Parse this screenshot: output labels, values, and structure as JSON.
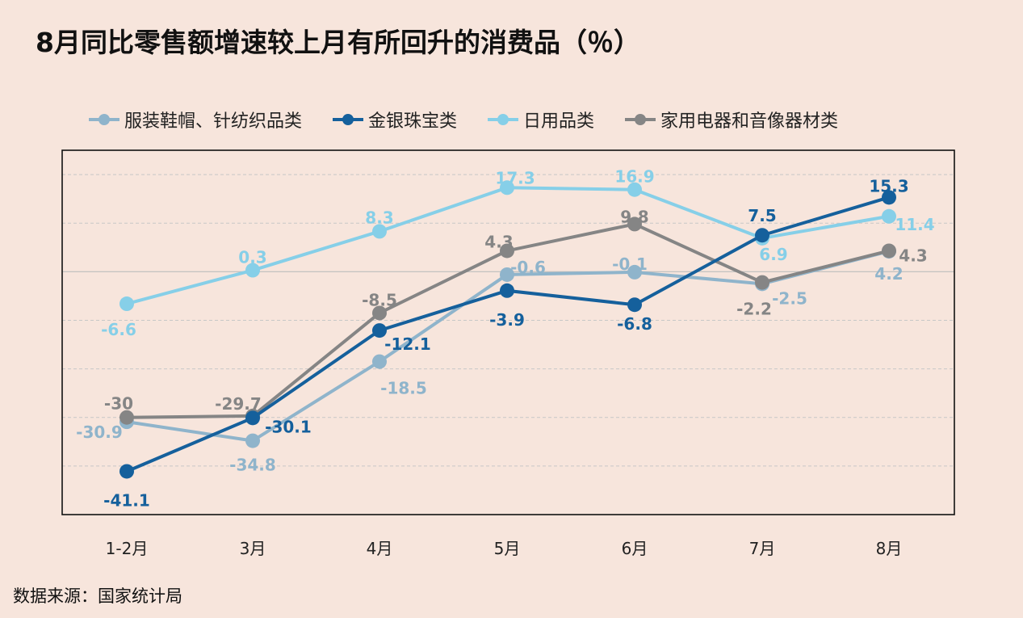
{
  "title": "8月同比零售额增速较上月有所回升的消费品（％）",
  "source": "数据来源：国家统计局",
  "chart_data": {
    "type": "line",
    "categories": [
      "1-2月",
      "3月",
      "4月",
      "5月",
      "6月",
      "7月",
      "8月"
    ],
    "ylim": [
      -50,
      25
    ],
    "grid": true,
    "legend_position": "top",
    "series": [
      {
        "name": "服装鞋帽、针纺织品类",
        "color": "#8fb4cb",
        "values": [
          -30.9,
          -34.8,
          -18.5,
          -0.6,
          -0.1,
          -2.5,
          4.2
        ],
        "labels": [
          "-30.9",
          "-34.8",
          "-18.5",
          "-0.6",
          "-0.1",
          "-2.5",
          "4.2"
        ]
      },
      {
        "name": "金银珠宝类",
        "color": "#15609c",
        "values": [
          -41.1,
          -30.1,
          -12.1,
          -3.9,
          -6.8,
          7.5,
          15.3
        ],
        "labels": [
          "-41.1",
          "-30.1",
          "-12.1",
          "-3.9",
          "-6.8",
          "7.5",
          "15.3"
        ]
      },
      {
        "name": "日用品类",
        "color": "#86cfe8",
        "values": [
          -6.6,
          0.3,
          8.3,
          17.3,
          16.9,
          6.9,
          11.4
        ],
        "labels": [
          "-6.6",
          "0.3",
          "8.3",
          "17.3",
          "16.9",
          "6.9",
          "11.4"
        ]
      },
      {
        "name": "家用电器和音像器材类",
        "color": "#858585",
        "values": [
          -30,
          -29.7,
          -8.5,
          4.3,
          9.8,
          -2.2,
          4.3
        ],
        "labels": [
          "-30",
          "-29.7",
          "-8.5",
          "4.3",
          "9.8",
          "-2.2",
          "4.3"
        ]
      }
    ]
  }
}
